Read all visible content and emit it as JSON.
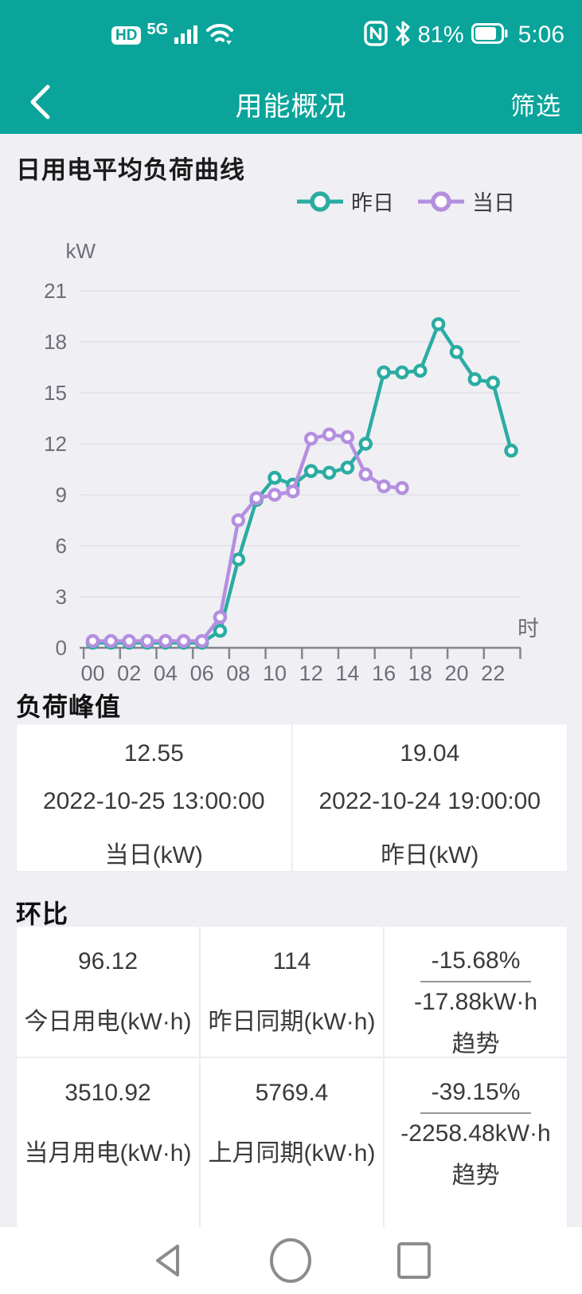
{
  "colors": {
    "header_teal": "#0AA49A",
    "page_bg": "#F0EFF4",
    "series_yesterday": "#2BACA2",
    "series_today": "#B48FE0",
    "grid_line": "#E4E3EA",
    "axis_line": "#85858D",
    "axis_text": "#6E6E78",
    "card_text": "#3A3A3E",
    "nav_icon_gray": "#8C8C8C"
  },
  "status_bar": {
    "hd_badge": "HD",
    "network": "5G",
    "icons_left": [
      "hd-badge",
      "signal-bars-icon",
      "wifi-icon"
    ],
    "icons_right": [
      "nfc-icon",
      "bluetooth-icon",
      "battery-icon"
    ],
    "battery_percent": "81%",
    "time": "5:06"
  },
  "app_bar": {
    "title": "用能概况",
    "filter_label": "筛选",
    "back_icon": "chevron-left"
  },
  "chart": {
    "title": "日用电平均负荷曲线",
    "y_unit": "kW",
    "x_unit": "时",
    "legend": [
      {
        "label": "昨日",
        "color": "#2BACA2"
      },
      {
        "label": "当日",
        "color": "#B48FE0"
      }
    ]
  },
  "chart_data": {
    "type": "line",
    "title": "日用电平均负荷曲线",
    "ylabel": "kW",
    "xlabel": "时",
    "x": [
      "00",
      "01",
      "02",
      "03",
      "04",
      "05",
      "06",
      "07",
      "08",
      "09",
      "10",
      "11",
      "12",
      "13",
      "14",
      "15",
      "16",
      "17",
      "18",
      "19",
      "20",
      "21",
      "22",
      "23"
    ],
    "x_tick_labels": [
      "00",
      "02",
      "04",
      "06",
      "08",
      "10",
      "12",
      "14",
      "16",
      "18",
      "20",
      "22"
    ],
    "ylim": [
      0,
      21
    ],
    "yticks": [
      0,
      3,
      6,
      9,
      12,
      15,
      18,
      21
    ],
    "grid": true,
    "legend_position": "top-right",
    "series": [
      {
        "name": "昨日",
        "color": "#2BACA2",
        "values": [
          0.3,
          0.3,
          0.3,
          0.3,
          0.3,
          0.3,
          0.3,
          1.0,
          5.2,
          8.7,
          10.0,
          9.6,
          10.4,
          10.3,
          10.6,
          12.0,
          16.2,
          16.2,
          16.3,
          19.04,
          17.4,
          15.8,
          15.6,
          11.6
        ]
      },
      {
        "name": "当日",
        "color": "#B48FE0",
        "values": [
          0.4,
          0.4,
          0.4,
          0.4,
          0.4,
          0.4,
          0.4,
          1.8,
          7.5,
          8.8,
          9.0,
          9.2,
          12.3,
          12.55,
          12.4,
          10.2,
          9.5,
          9.4
        ]
      }
    ]
  },
  "peak": {
    "title": "负荷峰值",
    "cells": [
      {
        "value": "12.55",
        "datetime": "2022-10-25 13:00:00",
        "label": "当日(kW)"
      },
      {
        "value": "19.04",
        "datetime": "2022-10-24 19:00:00",
        "label": "昨日(kW)"
      }
    ]
  },
  "ratio": {
    "title": "环比",
    "rows": [
      [
        {
          "value": "96.12",
          "label": "今日用电(kW·h)"
        },
        {
          "value": "114",
          "label": "昨日同期(kW·h)"
        },
        {
          "pct": "-15.68%",
          "delta": "-17.88kW·h",
          "label": "趋势"
        }
      ],
      [
        {
          "value": "3510.92",
          "label": "当月用电(kW·h)"
        },
        {
          "value": "5769.4",
          "label": "上月同期(kW·h)"
        },
        {
          "pct": "-39.15%",
          "delta": "-2258.48kW·h",
          "label": "趋势"
        }
      ]
    ]
  },
  "nav_bar": {
    "icons": [
      "back-triangle-icon",
      "home-circle-icon",
      "recents-square-icon"
    ]
  }
}
